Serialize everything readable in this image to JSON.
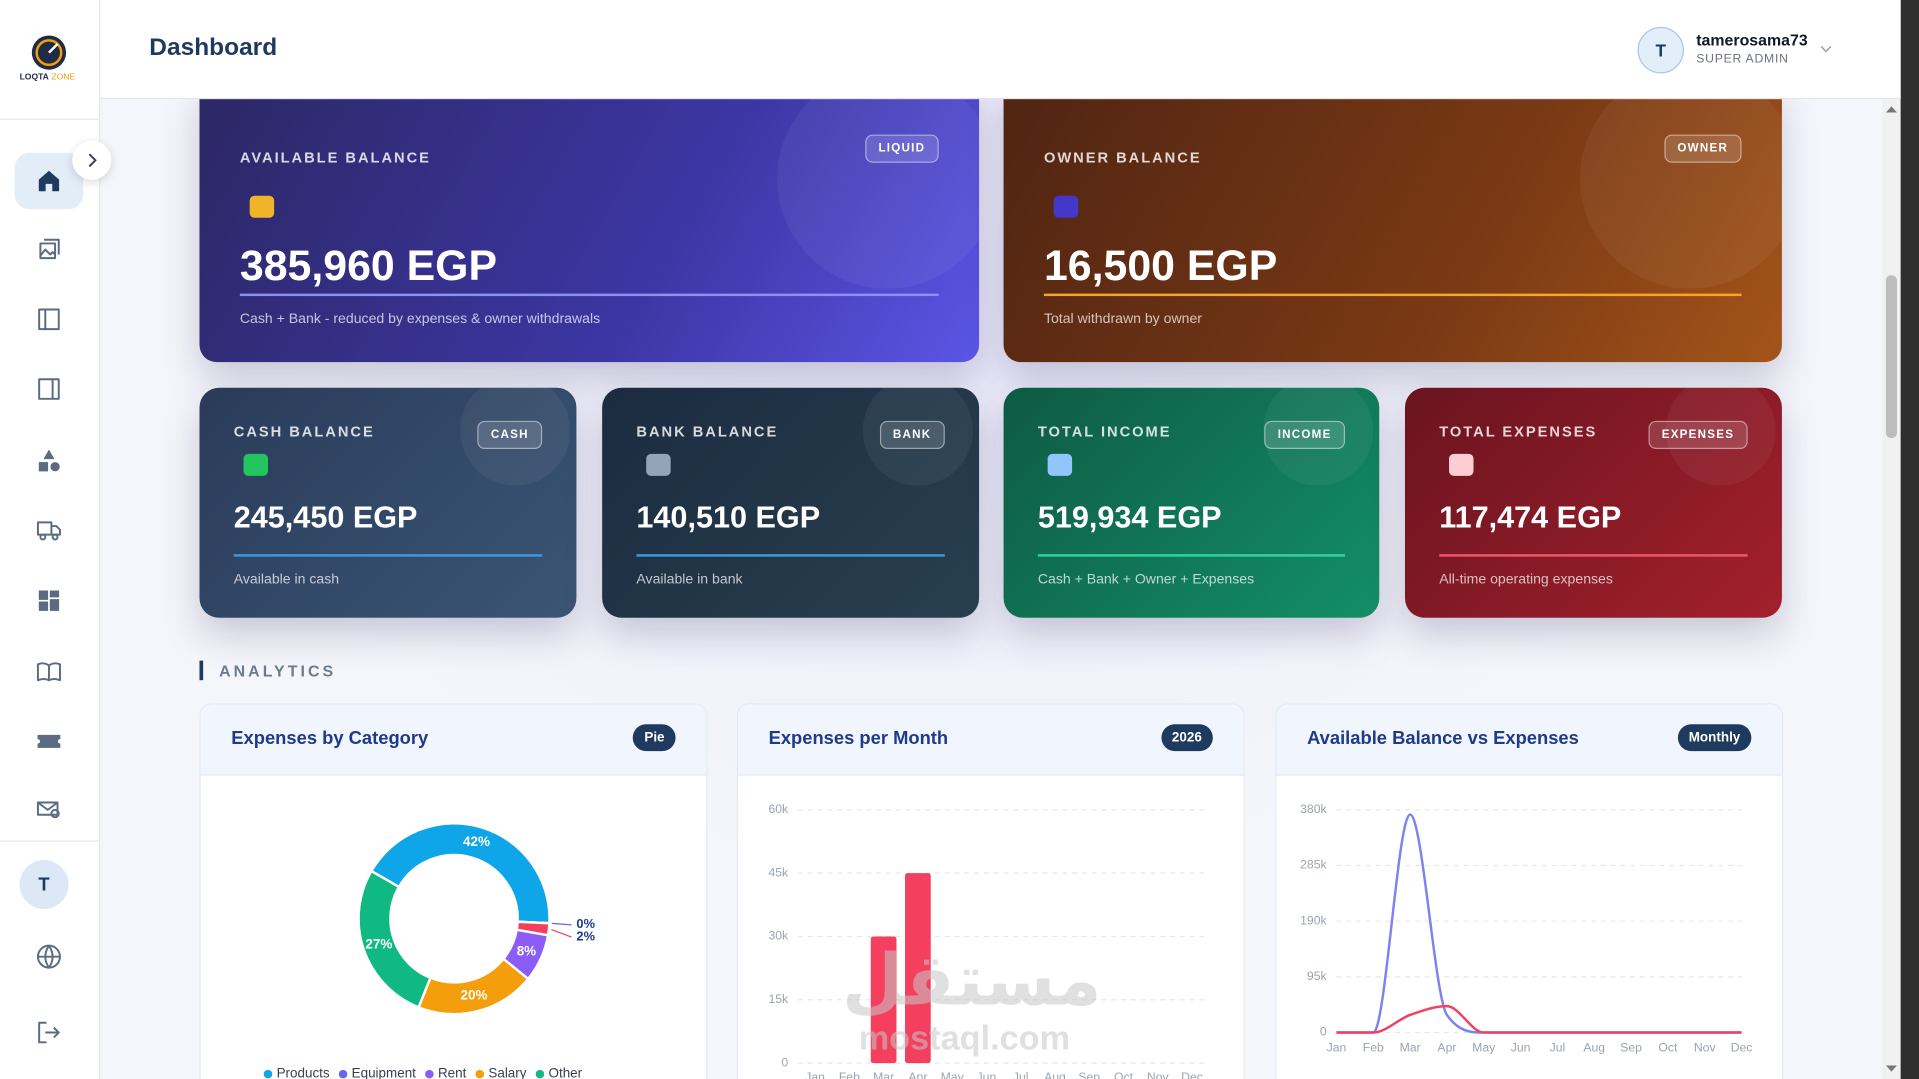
{
  "sidebar": {
    "logo": {
      "name": "LOQTA",
      "accent": "ZONE"
    },
    "user_initial": "T"
  },
  "header": {
    "title": "Dashboard",
    "user": {
      "initial": "T",
      "name": "tamerosama73",
      "role": "SUPER ADMIN"
    }
  },
  "cards": [
    {
      "label": "AVAILABLE BALANCE",
      "badge": "LIQUID",
      "value": "385,960 EGP",
      "note": "Cash + Bank - reduced by expenses & owner withdrawals"
    },
    {
      "label": "OWNER BALANCE",
      "badge": "OWNER",
      "value": "16,500 EGP",
      "note": "Total withdrawn by owner"
    },
    {
      "label": "CASH BALANCE",
      "badge": "CASH",
      "value": "245,450 EGP",
      "note": "Available in cash"
    },
    {
      "label": "BANK BALANCE",
      "badge": "BANK",
      "value": "140,510 EGP",
      "note": "Available in bank"
    },
    {
      "label": "TOTAL INCOME",
      "badge": "INCOME",
      "value": "519,934 EGP",
      "note": "Cash + Bank + Owner + Expenses"
    },
    {
      "label": "TOTAL EXPENSES",
      "badge": "EXPENSES",
      "value": "117,474 EGP",
      "note": "All-time operating expenses"
    }
  ],
  "section_title": "ANALYTICS",
  "chart_data": [
    {
      "type": "pie",
      "title": "Expenses by Category",
      "badge": "Pie",
      "categories": [
        "Products",
        "Equipment",
        null,
        "Rent",
        "Salary",
        "Other"
      ],
      "values": [
        42,
        0,
        2,
        8,
        20,
        27
      ],
      "value_labels": [
        "42%",
        "0%",
        "2%",
        "8%",
        "20%",
        "27%"
      ],
      "colors": [
        "#0ea5e9",
        "#6366f1",
        "#f43f5e",
        "#8b5cf6",
        "#f59e0b",
        "#10b981"
      ],
      "legend": "bottom"
    },
    {
      "type": "bar",
      "title": "Expenses per Month",
      "badge": "2026",
      "categories": [
        "Jan",
        "Feb",
        "Mar",
        "Apr",
        "May",
        "Jun",
        "Jul",
        "Aug",
        "Sep",
        "Oct",
        "Nov",
        "Dec"
      ],
      "values": [
        0,
        0,
        30000,
        45000,
        0,
        0,
        0,
        0,
        0,
        0,
        0,
        0
      ],
      "color": "#f43f5e",
      "ylim": [
        0,
        60000
      ],
      "yticks": [
        0,
        {
          "value": 15000,
          "label": "15k"
        },
        {
          "value": 30000,
          "label": "30k"
        },
        {
          "value": 45000,
          "label": "45k"
        },
        {
          "value": 60000,
          "label": "60k"
        }
      ],
      "grid": true
    },
    {
      "type": "line",
      "title": "Available Balance vs Expenses",
      "badge": "Monthly",
      "categories": [
        "Jan",
        "Feb",
        "Mar",
        "Apr",
        "May",
        "Jun",
        "Jul",
        "Aug",
        "Sep",
        "Oct",
        "Nov",
        "Dec"
      ],
      "series": [
        {
          "color": "#7c83f0",
          "values": [
            0,
            0,
            372000,
            30000,
            0,
            0,
            0,
            0,
            0,
            0,
            0,
            0
          ]
        },
        {
          "color": "#f43f5e",
          "values": [
            0,
            0,
            30000,
            45000,
            0,
            0,
            0,
            0,
            0,
            0,
            0,
            0
          ]
        }
      ],
      "ylim": [
        0,
        380000
      ],
      "yticks": [
        0,
        {
          "value": 95000,
          "label": "95k"
        },
        {
          "value": 190000,
          "label": "190k"
        },
        {
          "value": 285000,
          "label": "285k"
        },
        {
          "value": 380000,
          "label": "380k"
        }
      ],
      "grid": true
    }
  ],
  "watermark": {
    "arabic": "مستقل",
    "latin": "mostaql.com"
  }
}
